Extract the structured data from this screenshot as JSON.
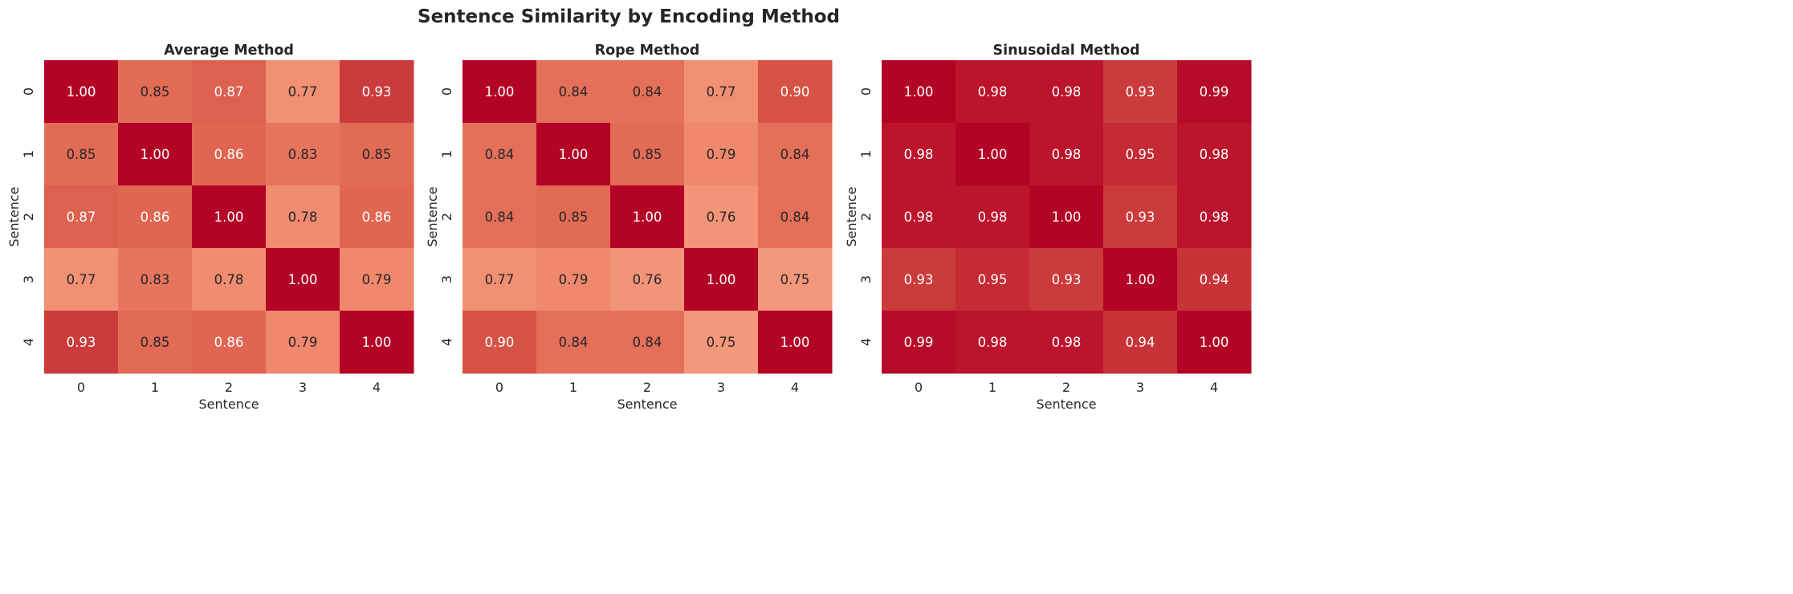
{
  "title": "Sentence Similarity by Encoding Method",
  "chart_data": [
    {
      "type": "heatmap",
      "title": "Average Method",
      "xlabel": "Sentence",
      "ylabel": "Sentence",
      "x_ticks": [
        "0",
        "1",
        "2",
        "3",
        "4"
      ],
      "y_ticks": [
        "0",
        "1",
        "2",
        "3",
        "4"
      ],
      "colormap": "coolwarm",
      "vrange": [
        0,
        1
      ],
      "values": [
        [
          1.0,
          0.85,
          0.87,
          0.77,
          0.93
        ],
        [
          0.85,
          1.0,
          0.86,
          0.83,
          0.85
        ],
        [
          0.87,
          0.86,
          1.0,
          0.78,
          0.86
        ],
        [
          0.77,
          0.83,
          0.78,
          1.0,
          0.79
        ],
        [
          0.93,
          0.85,
          0.86,
          0.79,
          1.0
        ]
      ]
    },
    {
      "type": "heatmap",
      "title": "Rope Method",
      "xlabel": "Sentence",
      "ylabel": "Sentence",
      "x_ticks": [
        "0",
        "1",
        "2",
        "3",
        "4"
      ],
      "y_ticks": [
        "0",
        "1",
        "2",
        "3",
        "4"
      ],
      "colormap": "coolwarm",
      "vrange": [
        0,
        1
      ],
      "values": [
        [
          1.0,
          0.84,
          0.84,
          0.77,
          0.9
        ],
        [
          0.84,
          1.0,
          0.85,
          0.79,
          0.84
        ],
        [
          0.84,
          0.85,
          1.0,
          0.76,
          0.84
        ],
        [
          0.77,
          0.79,
          0.76,
          1.0,
          0.75
        ],
        [
          0.9,
          0.84,
          0.84,
          0.75,
          1.0
        ]
      ]
    },
    {
      "type": "heatmap",
      "title": "Sinusoidal Method",
      "xlabel": "Sentence",
      "ylabel": "Sentence",
      "x_ticks": [
        "0",
        "1",
        "2",
        "3",
        "4"
      ],
      "y_ticks": [
        "0",
        "1",
        "2",
        "3",
        "4"
      ],
      "colormap": "coolwarm",
      "vrange": [
        0,
        1
      ],
      "values": [
        [
          1.0,
          0.98,
          0.98,
          0.93,
          0.99
        ],
        [
          0.98,
          1.0,
          0.98,
          0.95,
          0.98
        ],
        [
          0.98,
          0.98,
          1.0,
          0.93,
          0.98
        ],
        [
          0.93,
          0.95,
          0.93,
          1.0,
          0.94
        ],
        [
          0.99,
          0.98,
          0.98,
          0.94,
          1.0
        ]
      ]
    }
  ]
}
